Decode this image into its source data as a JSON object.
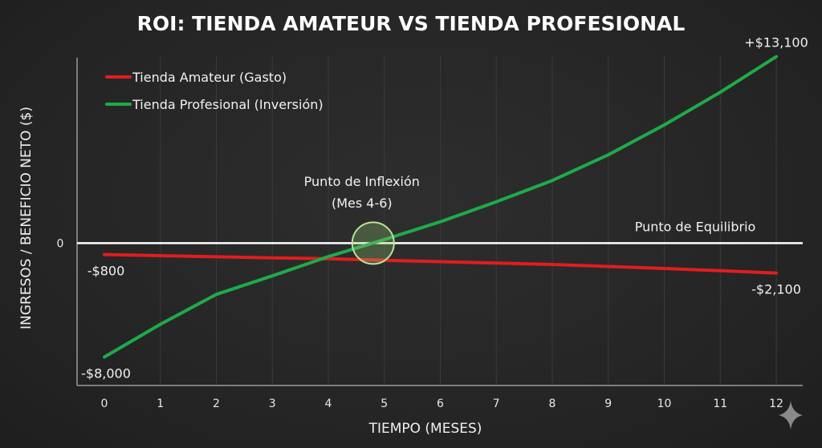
{
  "chart_data": {
    "type": "line",
    "title": "ROI: TIENDA AMATEUR VS TIENDA PROFESIONAL",
    "xlabel": "TIEMPO (MESES)",
    "ylabel": "INGRESOS / BENEFICIO NETO ($)",
    "x": [
      0,
      1,
      2,
      3,
      4,
      5,
      6,
      7,
      8,
      9,
      10,
      11,
      12
    ],
    "xlim": [
      0,
      12
    ],
    "ylim": [
      -10000,
      13700
    ],
    "y_ticks": [
      {
        "value": 0,
        "label": "0"
      }
    ],
    "legend_position": "top-left",
    "grid": "vertical",
    "series": [
      {
        "name": "Tienda Amateur (Gasto)",
        "color": "#e11d1d",
        "values": [
          -800,
          -880,
          -960,
          -1030,
          -1100,
          -1200,
          -1300,
          -1400,
          -1500,
          -1640,
          -1780,
          -1940,
          -2100
        ]
      },
      {
        "name": "Tienda Profesional (Inversión)",
        "color": "#1faa4a",
        "values": [
          -8000,
          -5700,
          -3600,
          -2300,
          -950,
          250,
          1500,
          2900,
          4400,
          6200,
          8300,
          10600,
          13100
        ]
      }
    ],
    "value_labels": [
      {
        "text": "-$800",
        "series": 0,
        "x": 0,
        "position": "below"
      },
      {
        "text": "-$8,000",
        "series": 1,
        "x": 0,
        "position": "below"
      },
      {
        "text": "+$13,100",
        "series": 1,
        "x": 12,
        "position": "above"
      },
      {
        "text": "-$2,100",
        "series": 0,
        "x": 12,
        "position": "below"
      }
    ],
    "annotations": {
      "inflection_line1": "Punto de Inflexión",
      "inflection_line2": "(Mes 4-6)",
      "inflection_x": 4.8,
      "inflection_y": 0,
      "breakeven": "Punto de Equilibrio"
    },
    "colors": {
      "background": "#262626",
      "zero_line": "#ffffff",
      "grid": "#3a3a3a",
      "highlight_circle": "#b9e39a"
    }
  }
}
